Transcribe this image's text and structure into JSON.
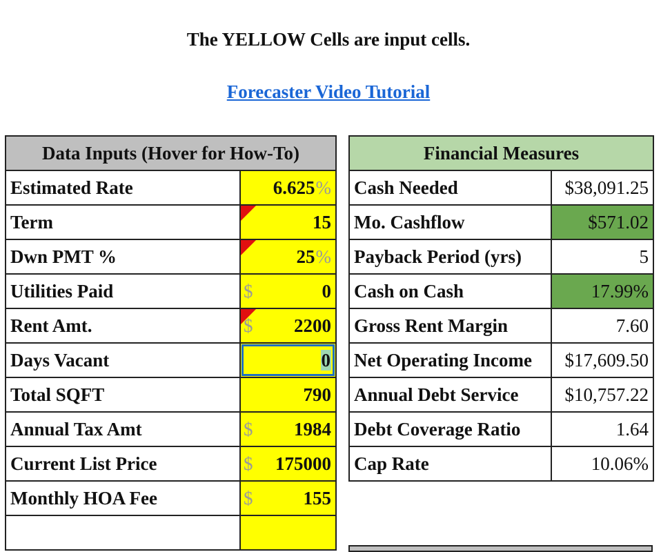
{
  "header": {
    "note": "The YELLOW Cells are input cells.",
    "tutorial_link": "Forecaster Video Tutorial"
  },
  "inputs": {
    "title": "Data Inputs (Hover for How-To)",
    "rows": [
      {
        "label": "Estimated Rate",
        "value": "6.625",
        "unit": "%"
      },
      {
        "label": "Term",
        "value": "15"
      },
      {
        "label": "Dwn PMT %",
        "value": "25",
        "unit": "%"
      },
      {
        "label": "Utilities Paid",
        "value": "0",
        "currency": "$"
      },
      {
        "label": "Rent Amt.",
        "value": "2200",
        "currency": "$"
      },
      {
        "label": "Days Vacant",
        "value": "0"
      },
      {
        "label": "Total SQFT",
        "value": "790"
      },
      {
        "label": "Annual Tax Amt",
        "value": "1984",
        "currency": "$"
      },
      {
        "label": "Current List Price",
        "value": "175000",
        "currency": "$"
      },
      {
        "label": "Monthly HOA Fee",
        "value": "155",
        "currency": "$"
      }
    ]
  },
  "measures": {
    "title": "Financial Measures",
    "rows": [
      {
        "label": "Cash Needed",
        "value": "$38,091.25"
      },
      {
        "label": "Mo. Cashflow",
        "value": "$571.02"
      },
      {
        "label": "Payback Period (yrs)",
        "value": "5"
      },
      {
        "label": "Cash on Cash",
        "value": "17.99%"
      },
      {
        "label": "Gross Rent Margin",
        "value": "7.60"
      },
      {
        "label": "Net Operating Income",
        "value": "$17,609.50"
      },
      {
        "label": "Annual Debt Service",
        "value": "$10,757.22"
      },
      {
        "label": "Debt Coverage Ratio",
        "value": "1.64"
      },
      {
        "label": "Cap Rate",
        "value": "10.06%"
      }
    ]
  },
  "colors": {
    "input_yellow": "#ffff00",
    "good_green": "#6aa84f",
    "header_gray": "#bfbfbf",
    "header_green": "#b6d7a8",
    "link_blue": "#1a66d6",
    "selection_blue": "#1f6fc4"
  }
}
